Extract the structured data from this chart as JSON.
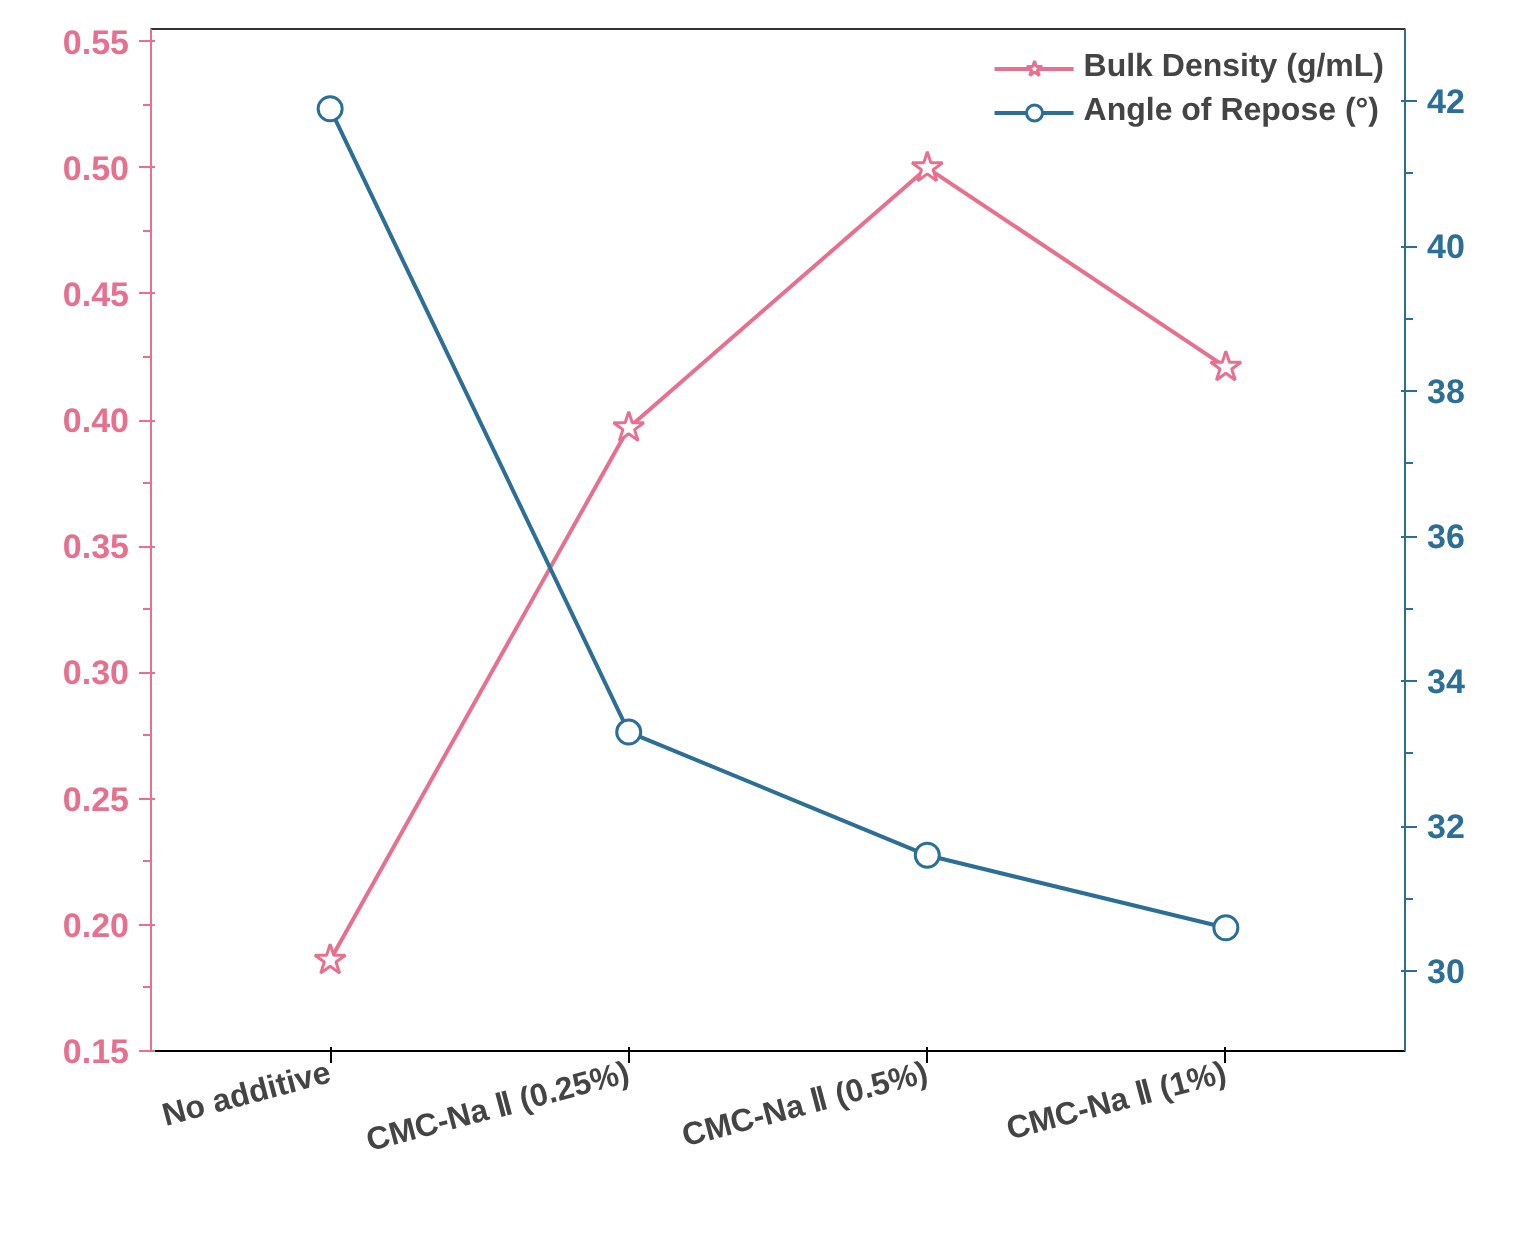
{
  "chart_data": {
    "type": "line",
    "categories": [
      "No additive",
      "CMC-Na Ⅱ (0.25%)",
      "CMC-Na Ⅱ (0.5%)",
      "CMC-Na Ⅱ (1%)"
    ],
    "series": [
      {
        "name": "Bulk Density (g/mL)",
        "color": "#e8708f",
        "values": [
          0.186,
          0.397,
          0.5,
          0.421
        ],
        "marker": "star"
      },
      {
        "name": "Angle of Repose (°)",
        "color": "#2b6e96",
        "values": [
          41.9,
          33.3,
          31.6,
          30.6
        ],
        "marker": "circle",
        "axis": "y2"
      }
    ],
    "ylim": [
      0.15,
      0.555
    ],
    "yticks": [
      0.15,
      {
        "value": 0.2,
        "label": "0.20"
      },
      0.25,
      {
        "value": 0.3,
        "label": "0.30"
      },
      0.35,
      {
        "value": 0.4,
        "label": "0.40"
      },
      0.45,
      {
        "value": 0.5,
        "label": "0.50"
      },
      0.55
    ],
    "y2lim": [
      28.9,
      43.0
    ],
    "y2ticks": [
      30,
      32,
      34,
      36,
      38,
      40,
      42
    ],
    "grid": false,
    "legend": "top right",
    "line_style": "solid"
  }
}
